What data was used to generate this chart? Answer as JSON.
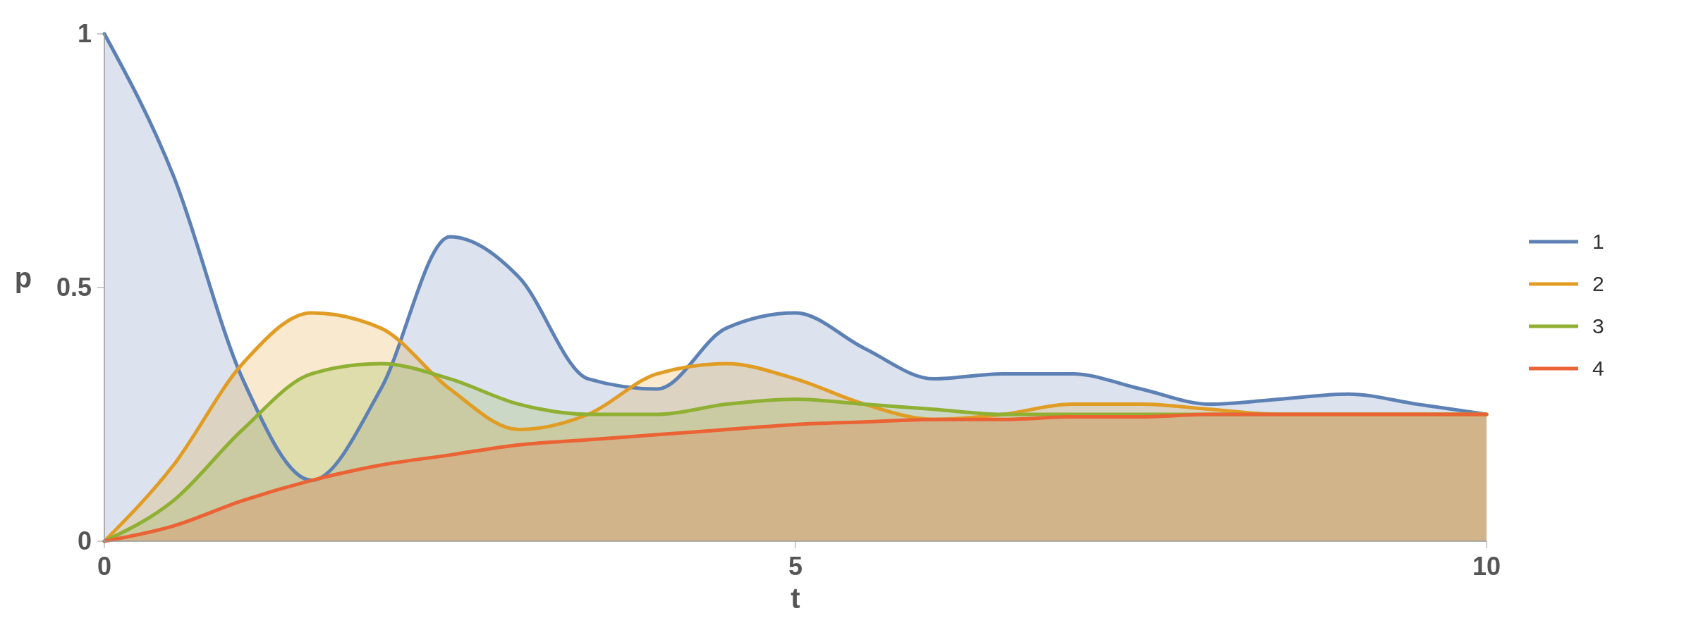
{
  "chart_data": {
    "type": "area",
    "xlabel": "t",
    "ylabel": "p",
    "x": [
      0,
      0.5,
      1,
      1.5,
      2,
      2.5,
      3,
      3.5,
      4,
      4.5,
      5,
      5.5,
      6,
      6.5,
      7,
      7.5,
      8,
      8.5,
      9,
      9.5,
      10
    ],
    "series": [
      {
        "name": "1",
        "color": "#5e81b5",
        "values": [
          1.0,
          0.72,
          0.32,
          0.12,
          0.3,
          0.6,
          0.52,
          0.32,
          0.3,
          0.42,
          0.45,
          0.38,
          0.32,
          0.33,
          0.33,
          0.3,
          0.27,
          0.28,
          0.29,
          0.27,
          0.25
        ]
      },
      {
        "name": "2",
        "color": "#e19c24",
        "values": [
          0,
          0.15,
          0.35,
          0.45,
          0.42,
          0.3,
          0.22,
          0.25,
          0.33,
          0.35,
          0.32,
          0.27,
          0.24,
          0.25,
          0.27,
          0.27,
          0.26,
          0.25,
          0.25,
          0.25,
          0.25
        ]
      },
      {
        "name": "3",
        "color": "#8fb032",
        "values": [
          0,
          0.08,
          0.22,
          0.33,
          0.35,
          0.32,
          0.27,
          0.25,
          0.25,
          0.27,
          0.28,
          0.27,
          0.26,
          0.25,
          0.25,
          0.25,
          0.25,
          0.25,
          0.25,
          0.25,
          0.25
        ]
      },
      {
        "name": "4",
        "color": "#eb6235",
        "values": [
          0,
          0.03,
          0.08,
          0.12,
          0.15,
          0.17,
          0.19,
          0.2,
          0.21,
          0.22,
          0.23,
          0.235,
          0.24,
          0.24,
          0.245,
          0.245,
          0.25,
          0.25,
          0.25,
          0.25,
          0.25
        ]
      }
    ],
    "xlim": [
      0,
      10
    ],
    "xticks": [
      0,
      5,
      10
    ],
    "ylim": [
      0,
      1
    ],
    "yticks": [
      0,
      0.5,
      1
    ],
    "legend": "right",
    "grid": false
  }
}
